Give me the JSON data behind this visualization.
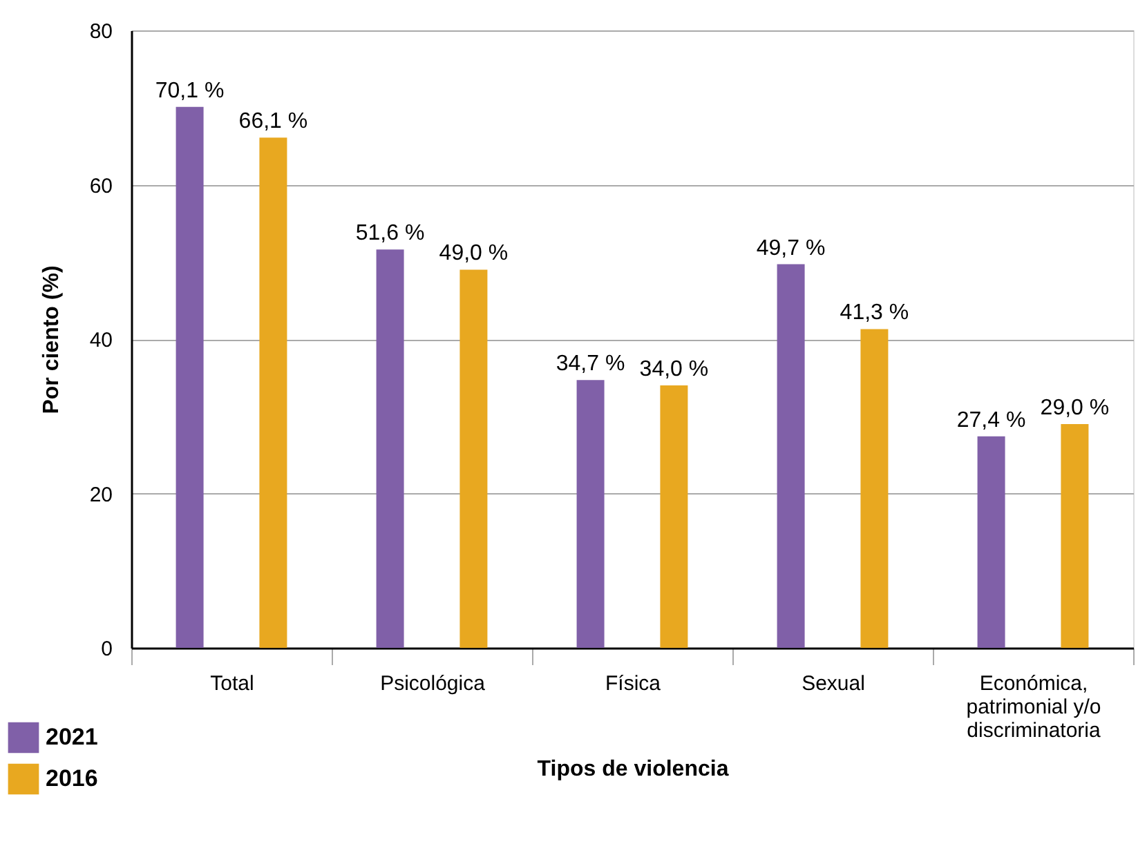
{
  "chart_data": {
    "type": "bar",
    "xlabel": "Tipos de violencia",
    "ylabel": "Por ciento (%)",
    "categories": [
      "Total",
      "Psicológica",
      "Física",
      "Sexual",
      "Económica, patrimonial y/o discriminatoria"
    ],
    "series": [
      {
        "name": "2021",
        "color": "#8060a8",
        "values": [
          70.1,
          51.6,
          34.7,
          49.7,
          27.4
        ],
        "value_labels": [
          "70,1 %",
          "51,6 %",
          "34,7 %",
          "49,7 %",
          "27,4 %"
        ]
      },
      {
        "name": "2016",
        "color": "#e8a820",
        "values": [
          66.1,
          49.0,
          34.0,
          41.3,
          29.0
        ],
        "value_labels": [
          "66,1 %",
          "49,0 %",
          "34,0 %",
          "41,3 %",
          "29,0 %"
        ]
      }
    ],
    "ylim": [
      0,
      80
    ],
    "yticks": [
      0,
      20,
      40,
      60,
      80
    ],
    "grid": "y",
    "legend": "bottom left"
  }
}
